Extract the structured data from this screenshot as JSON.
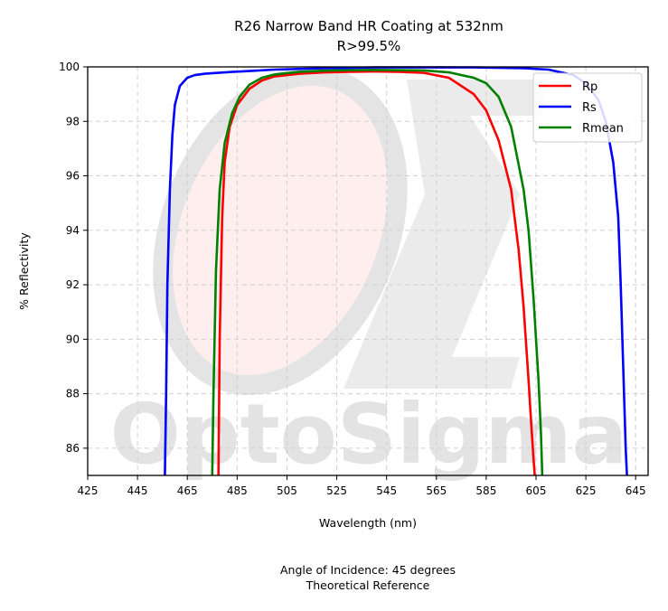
{
  "chart_data": {
    "type": "line",
    "title": "R26 Narrow Band HR Coating at 532nm",
    "subtitle": "R>99.5%",
    "xlabel": "Wavelength (nm)",
    "ylabel": "% Reflectivity",
    "xlim": [
      425,
      650
    ],
    "ylim": [
      85,
      100
    ],
    "xticks": [
      425,
      445,
      465,
      485,
      505,
      525,
      545,
      565,
      585,
      605,
      625,
      645
    ],
    "yticks": [
      86,
      88,
      90,
      92,
      94,
      96,
      98,
      100
    ],
    "grid": true,
    "legend_position": "top-right",
    "series": [
      {
        "name": "Rp",
        "color": "#ff0000",
        "x": [
          477.5,
          478,
          479,
          480,
          482,
          485,
          490,
          495,
          500,
          510,
          520,
          530,
          540,
          550,
          560,
          570,
          580,
          585,
          590,
          595,
          598,
          600,
          602,
          603,
          604,
          604.5
        ],
        "y": [
          85,
          90,
          94.5,
          96.5,
          97.8,
          98.6,
          99.2,
          99.5,
          99.65,
          99.75,
          99.8,
          99.82,
          99.83,
          99.82,
          99.78,
          99.6,
          99.0,
          98.4,
          97.3,
          95.5,
          93.3,
          91.2,
          88.5,
          87.0,
          85.6,
          85
        ]
      },
      {
        "name": "Rs",
        "color": "#0000ff",
        "x": [
          456,
          456.5,
          457,
          458,
          459,
          460,
          462,
          465,
          468,
          472,
          480,
          490,
          500,
          520,
          540,
          560,
          580,
          600,
          610,
          620,
          625,
          630,
          633,
          636,
          638,
          639,
          640,
          641,
          641.5
        ],
        "y": [
          85,
          88,
          92,
          95.5,
          97.5,
          98.6,
          99.3,
          99.6,
          99.7,
          99.75,
          99.8,
          99.85,
          99.9,
          99.95,
          99.98,
          99.98,
          99.98,
          99.95,
          99.9,
          99.7,
          99.4,
          98.8,
          98.0,
          96.5,
          94.5,
          92,
          89,
          86,
          85
        ]
      },
      {
        "name": "Rmean",
        "color": "#008000",
        "x": [
          475,
          475.5,
          476.5,
          478,
          480,
          483,
          486,
          490,
          495,
          500,
          510,
          520,
          530,
          540,
          550,
          560,
          570,
          580,
          585,
          590,
          595,
          600,
          602,
          604,
          606,
          607,
          607.5
        ],
        "y": [
          85,
          88,
          92.5,
          95.5,
          97.2,
          98.3,
          98.9,
          99.35,
          99.6,
          99.72,
          99.82,
          99.86,
          99.88,
          99.89,
          99.88,
          99.87,
          99.8,
          99.6,
          99.4,
          98.9,
          97.8,
          95.5,
          94,
          91.5,
          88.5,
          86.5,
          85
        ]
      }
    ],
    "annotations": [
      "Angle of Incidence: 45 degrees",
      "Theoretical Reference"
    ]
  },
  "watermark": {
    "text": "OptoSigma"
  }
}
